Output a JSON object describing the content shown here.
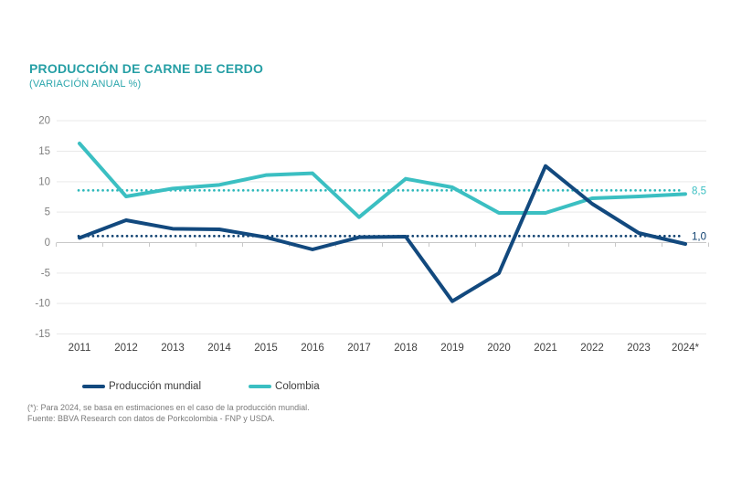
{
  "header": {
    "title": "PRODUCCIÓN DE CARNE DE CERDO",
    "subtitle": "(VARIACIÓN ANUAL %)"
  },
  "colors": {
    "title_teal": "#269fa5",
    "world_navy": "#12497e",
    "world_navy_dotted": "#0c3e6e",
    "colombia_teal": "#3bbfc2",
    "colombia_teal_dotted": "#2cb8ba",
    "gridline": "#e9e9e9",
    "axis_line": "#c8c8c8",
    "ytick_label": "#7f7f7f",
    "xtick_label": "#404040"
  },
  "chart_data": {
    "type": "line",
    "title": "PRODUCCIÓN DE CARNE DE CERDO (VARIACIÓN ANUAL %)",
    "x_labels": [
      "2011",
      "2012",
      "2013",
      "2014",
      "2015",
      "2016",
      "2017",
      "2018",
      "2019",
      "2020",
      "2021",
      "2022",
      "2023",
      "2024*"
    ],
    "ylim": [
      -15,
      20
    ],
    "yticks": [
      20,
      15,
      10,
      5,
      0,
      -5,
      -10,
      -15
    ],
    "grid": true,
    "legend_position": "bottom",
    "series": [
      {
        "key": "produccion-mundial",
        "name": "Producción mundial",
        "color": "#12497e",
        "dot_color": "#0c3e6e",
        "values": [
          0.7,
          3.6,
          2.2,
          2.1,
          0.8,
          -1.2,
          0.8,
          0.9,
          -9.7,
          -5.1,
          12.5,
          6.3,
          1.5,
          -0.3
        ],
        "average": 1.0,
        "average_label": "1,0"
      },
      {
        "key": "colombia",
        "name": "Colombia",
        "color": "#3bbfc2",
        "dot_color": "#2cb8ba",
        "values": [
          16.2,
          7.5,
          8.8,
          9.4,
          11.0,
          11.3,
          4.1,
          10.4,
          9.0,
          4.8,
          4.8,
          7.2,
          7.5,
          7.9
        ],
        "average": 8.5,
        "average_label": "8,5"
      }
    ]
  },
  "footnotes": {
    "line1": "(*): Para 2024, se basa en estimaciones en el caso de la producción mundial.",
    "line2": "Fuente: BBVA Research con datos de Porkcolombia - FNP y USDA."
  }
}
